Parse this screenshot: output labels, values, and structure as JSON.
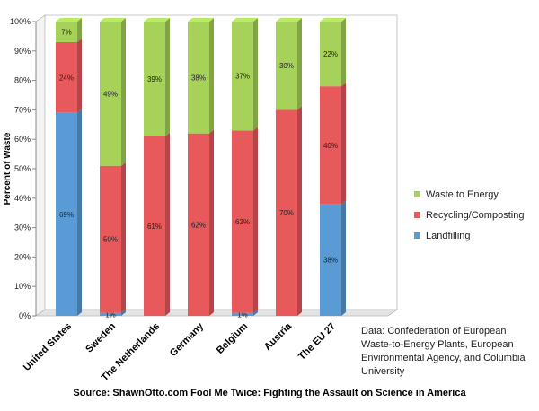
{
  "chart_data": {
    "type": "bar",
    "stacked": true,
    "categories": [
      "United States",
      "Sweden",
      "The Netherlands",
      "Germany",
      "Belgium",
      "Austria",
      "The EU 27"
    ],
    "series": [
      {
        "name": "Landfilling",
        "color": "#5b9bd5",
        "values": [
          69,
          1,
          0,
          0,
          1,
          0,
          38
        ],
        "labels": [
          "69%",
          "1%",
          "",
          "",
          "1%",
          "",
          "38%"
        ]
      },
      {
        "name": "Recycling/Composting",
        "color": "#e8595c",
        "values": [
          24,
          50,
          61,
          62,
          62,
          70,
          40
        ],
        "labels": [
          "24%",
          "50%",
          "61%",
          "62%",
          "62%",
          "70%",
          "40%"
        ]
      },
      {
        "name": "Waste to Energy",
        "color": "#a6d25a",
        "values": [
          7,
          49,
          39,
          38,
          37,
          30,
          22
        ],
        "labels": [
          "7%",
          "49%",
          "39%",
          "38%",
          "37%",
          "30%",
          "22%"
        ]
      }
    ],
    "ylabel": "Percent of Waste",
    "ylim": [
      0,
      100
    ],
    "yticks": [
      "0%",
      "10%",
      "20%",
      "30%",
      "40%",
      "50%",
      "60%",
      "70%",
      "80%",
      "90%",
      "100%"
    ],
    "grid": false,
    "legend_position": "right",
    "note": "Data:  Confederation of European Waste-to-Energy Plants, European Environmental Agency, and Columbia University",
    "source": "Source: ShawnOtto.com Fool Me Twice: Fighting the Assault on Science in America"
  }
}
